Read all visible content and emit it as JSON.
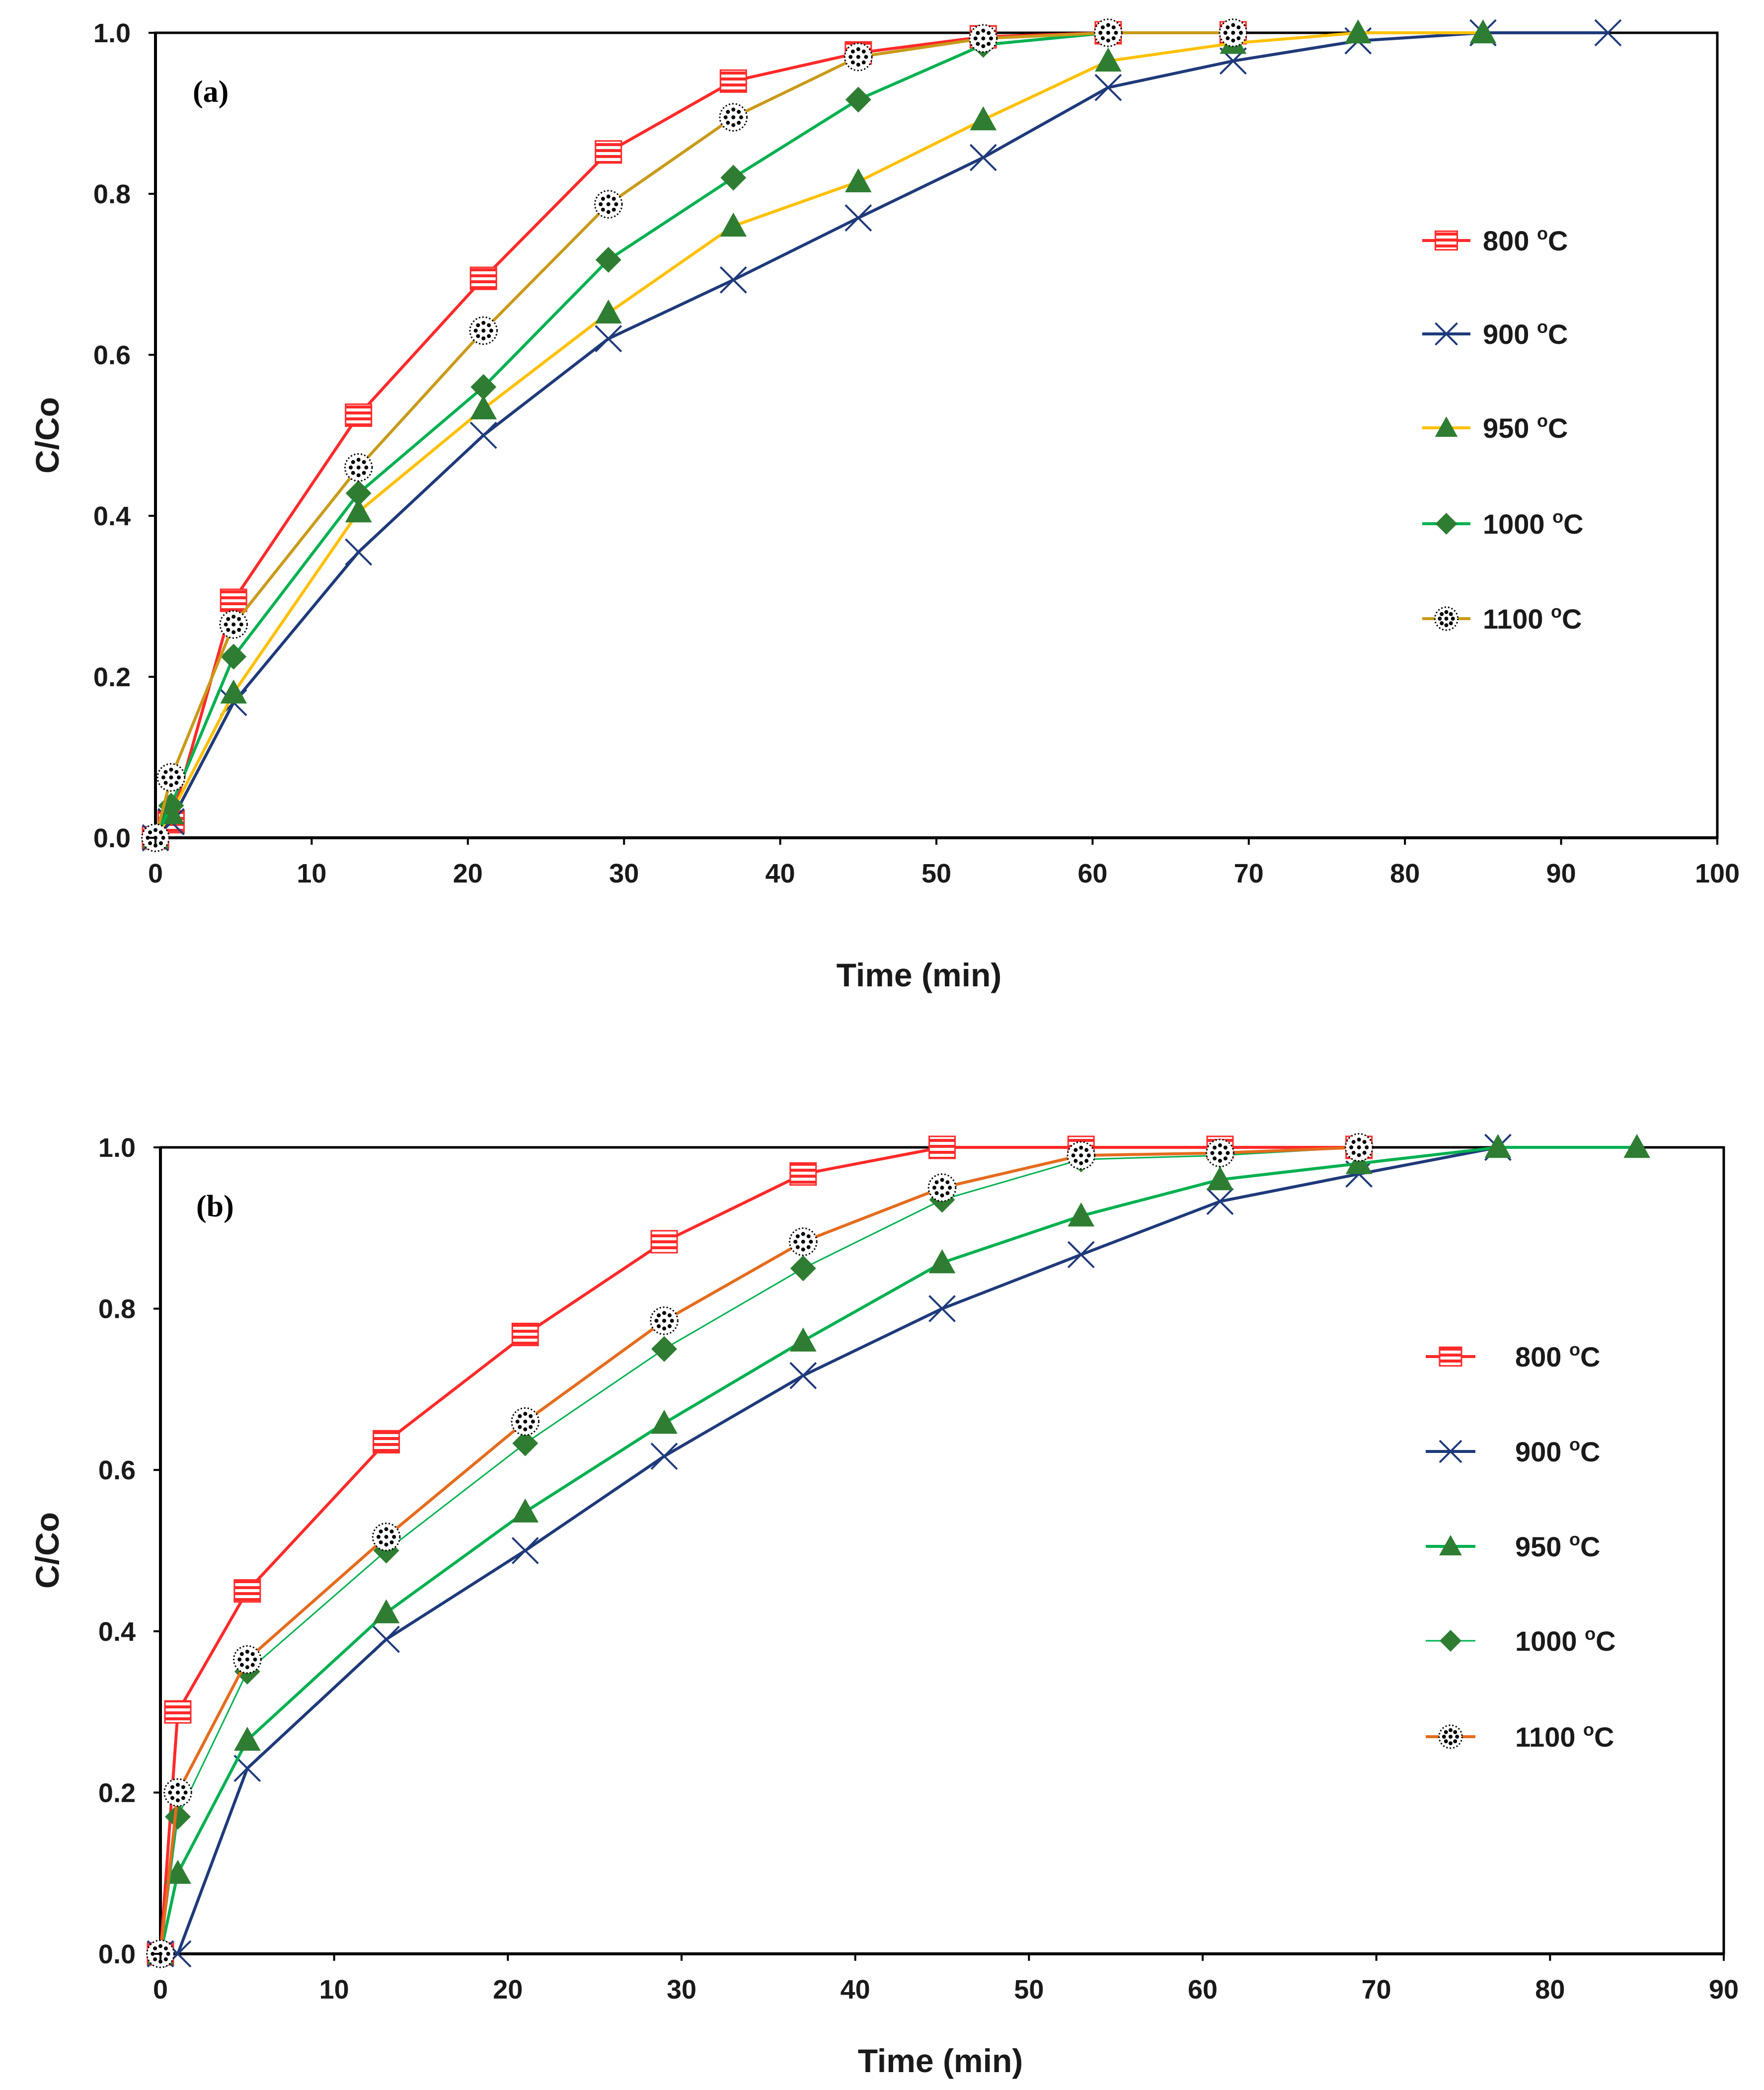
{
  "chart_data": [
    {
      "type": "line",
      "panel_label": "(a)",
      "xlabel": "Time (min)",
      "ylabel": "C/Co",
      "xlim": [
        0,
        100
      ],
      "ylim": [
        0,
        1.0
      ],
      "x_ticks": [
        "0",
        "10",
        "20",
        "30",
        "40",
        "50",
        "60",
        "70",
        "80",
        "90",
        "100"
      ],
      "y_ticks": [
        "0.0",
        "0.2",
        "0.4",
        "0.6",
        "0.8",
        "1.0"
      ],
      "x_tick_values": [
        0,
        10,
        20,
        30,
        40,
        50,
        60,
        70,
        80,
        90,
        100
      ],
      "y_tick_values": [
        0,
        0.2,
        0.4,
        0.6,
        0.8,
        1.0
      ],
      "grid": false,
      "legend_position": "right",
      "series": [
        {
          "name": "800",
          "unit": "oC",
          "color": "#ff2a2a",
          "marker": "square-striped",
          "x": [
            0,
            1,
            5,
            13,
            21,
            29,
            37,
            45,
            53,
            61,
            69
          ],
          "y": [
            0.0,
            0.02,
            0.295,
            0.525,
            0.695,
            0.852,
            0.94,
            0.975,
            0.995,
            1.0,
            1.0
          ]
        },
        {
          "name": "900",
          "unit": "oC",
          "color": "#1f3a7a",
          "marker": "x",
          "x": [
            0,
            1,
            5,
            13,
            21,
            29,
            37,
            45,
            53,
            61,
            69,
            77,
            85,
            93
          ],
          "y": [
            0.0,
            0.02,
            0.168,
            0.355,
            0.5,
            0.62,
            0.693,
            0.77,
            0.845,
            0.932,
            0.965,
            0.99,
            1.0,
            1.0
          ]
        },
        {
          "name": "950",
          "unit": "oC",
          "color": "#ffc000",
          "marker": "triangle",
          "x": [
            0,
            1,
            5,
            13,
            21,
            29,
            37,
            45,
            53,
            61,
            69,
            77,
            85
          ],
          "y": [
            0.0,
            0.03,
            0.18,
            0.405,
            0.533,
            0.652,
            0.76,
            0.815,
            0.892,
            0.965,
            0.987,
            1.0,
            1.0
          ]
        },
        {
          "name": "1000",
          "unit": "oC",
          "color": "#00b050",
          "marker": "diamond",
          "x": [
            0,
            1,
            5,
            13,
            21,
            29,
            37,
            45,
            53,
            61,
            69
          ],
          "y": [
            0.0,
            0.04,
            0.225,
            0.428,
            0.56,
            0.718,
            0.82,
            0.917,
            0.985,
            1.0,
            1.0
          ]
        },
        {
          "name": "1100",
          "unit": "oC",
          "color": "#c99a1a",
          "marker": "dotted-star",
          "x": [
            0,
            1,
            5,
            13,
            21,
            29,
            37,
            45,
            53,
            61,
            69
          ],
          "y": [
            0.0,
            0.075,
            0.265,
            0.46,
            0.63,
            0.787,
            0.895,
            0.97,
            0.993,
            1.0,
            1.0
          ]
        }
      ]
    },
    {
      "type": "line",
      "panel_label": "(b)",
      "xlabel": "Time (min)",
      "ylabel": "C/Co",
      "xlim": [
        0,
        90
      ],
      "ylim": [
        0,
        1.0
      ],
      "x_ticks": [
        "0",
        "10",
        "20",
        "30",
        "40",
        "50",
        "60",
        "70",
        "80",
        "90"
      ],
      "y_ticks": [
        "0.0",
        "0.2",
        "0.4",
        "0.6",
        "0.8",
        "1.0"
      ],
      "x_tick_values": [
        0,
        10,
        20,
        30,
        40,
        50,
        60,
        70,
        80,
        90
      ],
      "y_tick_values": [
        0,
        0.2,
        0.4,
        0.6,
        0.8,
        1.0
      ],
      "grid": false,
      "legend_position": "right",
      "series": [
        {
          "name": "800",
          "unit": "oC",
          "color": "#ff2a2a",
          "marker": "square-striped",
          "x": [
            0,
            1,
            5,
            13,
            21,
            29,
            37,
            45,
            53,
            61,
            69
          ],
          "y": [
            0.0,
            0.3,
            0.45,
            0.635,
            0.768,
            0.883,
            0.967,
            1.0,
            1.0,
            1.0,
            1.0
          ]
        },
        {
          "name": "900",
          "unit": "oC",
          "color": "#1f3a7a",
          "marker": "x",
          "x": [
            0,
            1,
            5,
            13,
            21,
            29,
            37,
            45,
            53,
            61,
            69,
            77
          ],
          "y": [
            0.0,
            0.0,
            0.23,
            0.39,
            0.5,
            0.617,
            0.717,
            0.8,
            0.867,
            0.933,
            0.967,
            1.0
          ]
        },
        {
          "name": "950",
          "unit": "oC",
          "color": "#00b050",
          "marker": "triangle",
          "x": [
            0,
            1,
            5,
            13,
            21,
            29,
            37,
            45,
            53,
            61,
            69,
            77,
            85
          ],
          "y": [
            0.0,
            0.1,
            0.265,
            0.423,
            0.548,
            0.658,
            0.76,
            0.857,
            0.915,
            0.96,
            0.98,
            1.0,
            1.0
          ]
        },
        {
          "name": "1000",
          "unit": "oC",
          "color": "#00b050",
          "marker": "diamond",
          "x": [
            0,
            1,
            5,
            13,
            21,
            29,
            37,
            45,
            53,
            61,
            69
          ],
          "y": [
            0.0,
            0.17,
            0.35,
            0.5,
            0.633,
            0.75,
            0.85,
            0.935,
            0.985,
            0.99,
            1.0
          ]
        },
        {
          "name": "1100",
          "unit": "oC",
          "color": "#e46c1e",
          "marker": "dotted-star",
          "x": [
            0,
            1,
            5,
            13,
            21,
            29,
            37,
            45,
            53,
            61,
            69
          ],
          "y": [
            0.0,
            0.2,
            0.365,
            0.517,
            0.66,
            0.785,
            0.883,
            0.95,
            0.99,
            0.993,
            1.0
          ]
        }
      ]
    }
  ]
}
